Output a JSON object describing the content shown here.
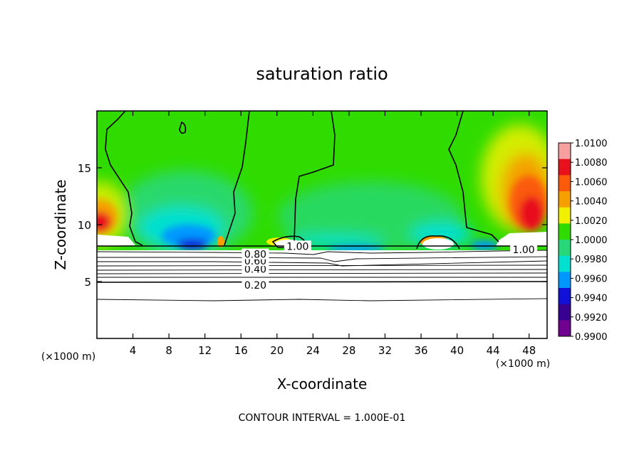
{
  "chart_data": {
    "type": "heatmap",
    "title": "saturation ratio",
    "xlabel": "X-coordinate",
    "ylabel": "Z-coordinate",
    "x_unit": "(×1000 m)",
    "xlim": [
      0,
      50
    ],
    "ylim": [
      0,
      20
    ],
    "x_ticks": [
      4,
      8,
      12,
      16,
      20,
      24,
      28,
      32,
      36,
      40,
      44,
      48
    ],
    "y_ticks": [
      5,
      10,
      15
    ],
    "colorbar": {
      "levels": [
        "1.0100",
        "1.0080",
        "1.0060",
        "1.0040",
        "1.0020",
        "1.0000",
        "0.9980",
        "0.9960",
        "0.9940",
        "0.9920",
        "0.9900"
      ],
      "colors": [
        "#f7a0a0",
        "#e8101a",
        "#fa5a0a",
        "#f5a000",
        "#f0f000",
        "#30dc00",
        "#28d878",
        "#00e0d0",
        "#0098ff",
        "#1010d8",
        "#380090",
        "#700090"
      ]
    },
    "contour_labels": [
      {
        "text": "0.20",
        "x": 17.6,
        "z": 4.7
      },
      {
        "text": "0.40",
        "x": 17.6,
        "z": 6.1
      },
      {
        "text": "0.60",
        "x": 17.6,
        "z": 6.8
      },
      {
        "text": "0.80",
        "x": 17.6,
        "z": 7.4
      },
      {
        "text": "1.00",
        "x": 22.3,
        "z": 8.1
      },
      {
        "text": "1.00",
        "x": 47.4,
        "z": 7.8
      }
    ],
    "contour_interval_label": "CONTOUR INTERVAL = 1.000E-01"
  }
}
